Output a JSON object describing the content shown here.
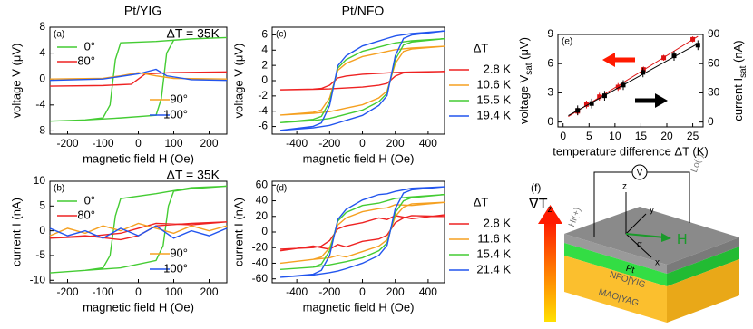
{
  "chart_data": [
    {
      "type": "line",
      "panel": "(a)",
      "title": "Pt/YIG",
      "annotation": "ΔT = 35K",
      "xlabel": "magnetic field H (Oe)",
      "ylabel": "voltage V (μV)",
      "xlim": [
        -250,
        250
      ],
      "xticks": [
        -200,
        -100,
        0,
        100,
        200
      ],
      "ylim": [
        -8.5,
        8
      ],
      "yticks": [
        -8,
        -4,
        0,
        4,
        8
      ],
      "series": [
        {
          "name": "0°",
          "color": "#44cc33",
          "x": [
            -250,
            -150,
            -50,
            50,
            65,
            80,
            100,
            150,
            250,
            250,
            150,
            50,
            -50,
            -65,
            -80,
            -100,
            -150,
            -250
          ],
          "values": [
            -6.5,
            -6.3,
            -6,
            -5.6,
            -3,
            4,
            6,
            6.2,
            6.4,
            6.4,
            6.2,
            5.8,
            5.6,
            3,
            -4,
            -6,
            -6.3,
            -6.5
          ]
        },
        {
          "name": "80°",
          "color": "#ee2222",
          "x": [
            -250,
            -100,
            -20,
            20,
            100,
            250,
            250,
            100,
            20,
            -20,
            -100,
            -250
          ],
          "values": [
            -1.1,
            -1,
            -0.8,
            0.8,
            1,
            1.1,
            1.1,
            1,
            0.8,
            -0.8,
            -1,
            -1.1
          ]
        },
        {
          "name": "90°",
          "color": "#f5a020",
          "x": [
            -250,
            -100,
            -50,
            0,
            50,
            100,
            250
          ],
          "values": [
            0,
            0.1,
            0.5,
            1,
            0.5,
            0.1,
            0
          ]
        },
        {
          "name": "100°",
          "color": "#2255ee",
          "x": [
            -250,
            -100,
            0,
            50,
            80,
            150,
            250
          ],
          "values": [
            -0.2,
            0,
            0.8,
            1.5,
            0.5,
            -0.1,
            -0.2
          ]
        }
      ]
    },
    {
      "type": "line",
      "panel": "(b)",
      "annotation": "ΔT = 35K",
      "xlabel": "magnetic field H (Oe)",
      "ylabel": "current I (nA)",
      "xlim": [
        -250,
        250
      ],
      "xticks": [
        -200,
        -100,
        0,
        100,
        200
      ],
      "ylim": [
        -10.5,
        10
      ],
      "yticks": [
        -10,
        -5,
        0,
        5,
        10
      ],
      "series": [
        {
          "name": "0°",
          "color": "#44cc33",
          "x": [
            -250,
            -150,
            -50,
            50,
            70,
            85,
            100,
            150,
            250,
            250,
            150,
            50,
            -50,
            -65,
            -80,
            -100,
            -150,
            -250
          ],
          "values": [
            -8.5,
            -8,
            -7.5,
            -6,
            -3,
            5,
            8,
            8.5,
            9,
            9,
            8.7,
            7.5,
            6.5,
            3,
            -5,
            -7.5,
            -8,
            -8.5
          ]
        },
        {
          "name": "80°",
          "color": "#ee2222",
          "x": [
            -250,
            -150,
            -50,
            0,
            50,
            150,
            250,
            250,
            150,
            50,
            0,
            -50,
            -150,
            -250
          ],
          "values": [
            -1.5,
            -1,
            -1.8,
            -1,
            1,
            1.5,
            1.8,
            1.8,
            1.2,
            1.5,
            0.5,
            -0.5,
            -1.2,
            -1.5
          ]
        },
        {
          "name": "90°",
          "color": "#f5a020",
          "x": [
            -250,
            -200,
            -150,
            -100,
            -50,
            0,
            50,
            100,
            150,
            200,
            250
          ],
          "values": [
            -1,
            0.5,
            -0.5,
            1,
            0,
            1.5,
            0.5,
            -0.5,
            1,
            0,
            1
          ]
        },
        {
          "name": "100°",
          "color": "#2255ee",
          "x": [
            -250,
            -200,
            -150,
            -100,
            -50,
            0,
            50,
            100,
            150,
            200,
            250
          ],
          "values": [
            0.5,
            -1,
            0,
            -1.5,
            0.5,
            -1,
            1,
            -1.5,
            0,
            -1,
            0.5
          ]
        }
      ]
    },
    {
      "type": "line",
      "panel": "(c)",
      "title": "Pt/NFO",
      "legend_title": "ΔT",
      "xlabel": "magnetic field H (Oe)",
      "ylabel": "voltage V (μV)",
      "xlim": [
        -550,
        500
      ],
      "xticks": [
        -400,
        -200,
        0,
        200,
        400
      ],
      "ylim": [
        -7,
        7
      ],
      "yticks": [
        -6,
        -4,
        -2,
        0,
        2,
        4,
        6
      ],
      "series": [
        {
          "name": "2.8 K",
          "color": "#ee2222",
          "x": [
            -500,
            -300,
            -200,
            -150,
            -100,
            0,
            100,
            150,
            200,
            250,
            300,
            500,
            500,
            300,
            200,
            150,
            100,
            0,
            -100,
            -150,
            -200,
            -250,
            -300,
            -500
          ],
          "values": [
            -1.2,
            -1.14,
            -1.08,
            -1.02,
            -0.96,
            -0.84,
            -0.6,
            -0.36,
            0.6,
            1.02,
            1.1,
            1.2,
            1.2,
            1.14,
            1.08,
            1.02,
            0.96,
            0.84,
            0.6,
            0.36,
            -0.6,
            -1.02,
            -1.1,
            -1.2
          ]
        },
        {
          "name": "10.6 K",
          "color": "#f5a020",
          "x": [
            -500,
            -300,
            -200,
            -150,
            -100,
            0,
            100,
            150,
            200,
            250,
            300,
            500,
            500,
            300,
            200,
            150,
            100,
            0,
            -100,
            -150,
            -200,
            -250,
            -300,
            -500
          ],
          "values": [
            -4.5,
            -4.28,
            -4.05,
            -3.83,
            -3.6,
            -3.15,
            -2.25,
            -1.35,
            2.25,
            3.83,
            4.14,
            4.5,
            4.5,
            4.28,
            4.05,
            3.83,
            3.6,
            3.15,
            2.25,
            1.35,
            -2.25,
            -3.83,
            -4.14,
            -4.5
          ]
        },
        {
          "name": "15.5 K",
          "color": "#44cc33",
          "x": [
            -500,
            -300,
            -200,
            -150,
            -100,
            0,
            100,
            150,
            200,
            250,
            300,
            500,
            500,
            300,
            200,
            150,
            100,
            0,
            -100,
            -150,
            -200,
            -250,
            -300,
            -500
          ],
          "values": [
            -5.5,
            -5.23,
            -4.95,
            -4.68,
            -4.4,
            -3.85,
            -2.75,
            -1.65,
            2.75,
            4.68,
            5.06,
            5.5,
            5.5,
            5.23,
            4.95,
            4.68,
            4.4,
            3.85,
            2.75,
            1.65,
            -2.75,
            -4.68,
            -5.06,
            -5.5
          ]
        },
        {
          "name": "19.4 K",
          "color": "#2255ee",
          "x": [
            -500,
            -300,
            -200,
            -150,
            -100,
            0,
            100,
            150,
            200,
            250,
            300,
            500,
            500,
            300,
            200,
            150,
            100,
            0,
            -100,
            -150,
            -200,
            -250,
            -300,
            -500
          ],
          "values": [
            -6.5,
            -6.18,
            -5.85,
            -5.53,
            -5.2,
            -4.55,
            -3.25,
            -1.95,
            3.25,
            5.53,
            5.98,
            6.5,
            6.5,
            6.18,
            5.85,
            5.53,
            5.2,
            4.55,
            3.25,
            1.95,
            -3.25,
            -5.53,
            -5.98,
            -6.5
          ]
        }
      ]
    },
    {
      "type": "line",
      "panel": "(d)",
      "legend_title": "ΔT",
      "xlabel": "magnetic field H (Oe)",
      "ylabel": "current I (nA)",
      "xlim": [
        -550,
        500
      ],
      "xticks": [
        -400,
        -200,
        0,
        200,
        400
      ],
      "ylim": [
        -65,
        65
      ],
      "yticks": [
        -60,
        -40,
        -20,
        0,
        20,
        40,
        60
      ],
      "series": [
        {
          "name": "2.8 K",
          "color": "#ee2222",
          "x": [
            -500,
            -300,
            -200,
            -150,
            -100,
            0,
            100,
            150,
            200,
            250,
            300,
            500,
            500,
            300,
            200,
            150,
            100,
            0,
            -100,
            -150,
            -200,
            -250,
            -300,
            -500
          ],
          "values": [
            -24,
            -18,
            -22,
            -16,
            -19,
            -12,
            -9,
            -4,
            12,
            18,
            21,
            20,
            22,
            17,
            21,
            16,
            18,
            12,
            8,
            4,
            -11,
            -18,
            -20,
            -22
          ]
        },
        {
          "name": "11.6 K",
          "color": "#f5a020",
          "x": [
            -500,
            -300,
            -200,
            -150,
            -100,
            0,
            100,
            150,
            200,
            250,
            300,
            500,
            500,
            300,
            200,
            150,
            100,
            0,
            -100,
            -150,
            -200,
            -250,
            -300,
            -500
          ],
          "values": [
            -40,
            -35,
            -33,
            -30,
            -32,
            -25,
            -18,
            -10,
            20,
            32,
            36,
            38,
            38,
            34,
            35,
            31,
            30,
            26,
            18,
            9,
            -20,
            -32,
            -35,
            -40
          ]
        },
        {
          "name": "15.4 K",
          "color": "#44cc33",
          "x": [
            -500,
            -300,
            -200,
            -150,
            -100,
            0,
            100,
            150,
            200,
            250,
            300,
            500,
            500,
            300,
            200,
            150,
            100,
            0,
            -100,
            -150,
            -200,
            -250,
            -300,
            -500
          ],
          "values": [
            -48,
            -45,
            -42,
            -40,
            -38,
            -33,
            -24,
            -14,
            25,
            40,
            44,
            48,
            48,
            45,
            43,
            40,
            37,
            34,
            25,
            14,
            -24,
            -41,
            -45,
            -48
          ]
        },
        {
          "name": "21.4 K",
          "color": "#2255ee",
          "x": [
            -500,
            -300,
            -200,
            -150,
            -100,
            0,
            100,
            150,
            200,
            250,
            300,
            500,
            500,
            300,
            200,
            150,
            100,
            0,
            -100,
            -150,
            -200,
            -250,
            -300,
            -500
          ],
          "values": [
            -58,
            -55,
            -52,
            -50,
            -47,
            -40,
            -30,
            -17,
            30,
            50,
            54,
            58,
            58,
            56,
            52,
            49,
            48,
            41,
            29,
            16,
            -30,
            -49,
            -54,
            -58
          ]
        }
      ]
    },
    {
      "type": "scatter",
      "panel": "(e)",
      "xlabel": "temperature difference ΔT (K)",
      "ylabel": {
        "text": "voltage V",
        "sub": "sat",
        "unit": " (μV)"
      },
      "y2label": {
        "text": "current I",
        "sub": "sat",
        "unit": " (nA)"
      },
      "xlim": [
        -1,
        27
      ],
      "xticks": [
        0,
        5,
        10,
        15,
        20,
        25
      ],
      "ylim": [
        -0.5,
        9
      ],
      "yticks": [
        0,
        3,
        6,
        9
      ],
      "y2lim": [
        -5,
        90
      ],
      "y2ticks": [
        0,
        30,
        60,
        90
      ],
      "series": [
        {
          "color": "#dd1111",
          "x": [
            2.8,
            4.5,
            7,
            10.6,
            15.5,
            19.4,
            25
          ],
          "values": [
            1.1,
            1.8,
            2.6,
            3.6,
            5.4,
            6.6,
            8.5
          ],
          "errors": [
            0.4,
            0.4,
            0.4,
            0.4,
            0.3,
            0.3,
            0.3
          ]
        },
        {
          "color": "#000000",
          "axis": "y2",
          "x": [
            2.8,
            5.5,
            8,
            11.6,
            15.4,
            21.4,
            26
          ],
          "values": [
            12,
            19,
            27,
            38,
            51,
            68,
            79
          ],
          "errors": [
            5,
            5,
            5,
            5,
            5,
            5,
            5
          ]
        }
      ]
    }
  ],
  "diagram": {
    "panel": "(f)",
    "gradient": "∇T",
    "gradient_sub": "z",
    "layers": [
      "Pt",
      "NFO|YIG",
      "MAO|YAG"
    ],
    "axes": [
      "x",
      "y",
      "z"
    ],
    "field": "H",
    "angle": "α",
    "meter": "V",
    "hi": "Hi(+)",
    "lo": "Lo(-)"
  }
}
